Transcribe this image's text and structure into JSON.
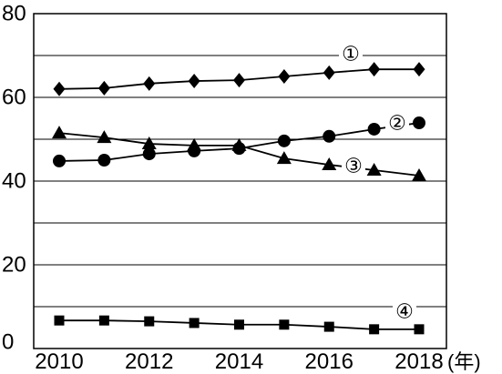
{
  "chart_data": {
    "type": "line",
    "x": [
      2010,
      2011,
      2012,
      2013,
      2014,
      2015,
      2016,
      2017,
      2018
    ],
    "xticks": [
      2010,
      2012,
      2014,
      2016,
      2018
    ],
    "xlabel": "(年)",
    "yticks": [
      0,
      20,
      40,
      60,
      80
    ],
    "ylim": [
      0,
      80
    ],
    "grid": true,
    "grid_step": 10,
    "line_color": "#000000",
    "series": [
      {
        "name": "①",
        "marker": "diamond",
        "values": [
          62.0,
          62.2,
          63.3,
          63.9,
          64.1,
          65.0,
          65.9,
          66.7,
          66.7
        ]
      },
      {
        "name": "②",
        "marker": "circle",
        "values": [
          44.8,
          45.0,
          46.5,
          47.2,
          47.8,
          49.6,
          50.7,
          52.4,
          53.9
        ]
      },
      {
        "name": "③",
        "marker": "triangle",
        "values": [
          51.5,
          50.4,
          48.9,
          48.5,
          48.5,
          45.4,
          43.9,
          42.6,
          41.3
        ]
      },
      {
        "name": "④",
        "marker": "square",
        "values": [
          6.7,
          6.7,
          6.5,
          6.1,
          5.7,
          5.7,
          5.2,
          4.6,
          4.6
        ]
      }
    ]
  }
}
